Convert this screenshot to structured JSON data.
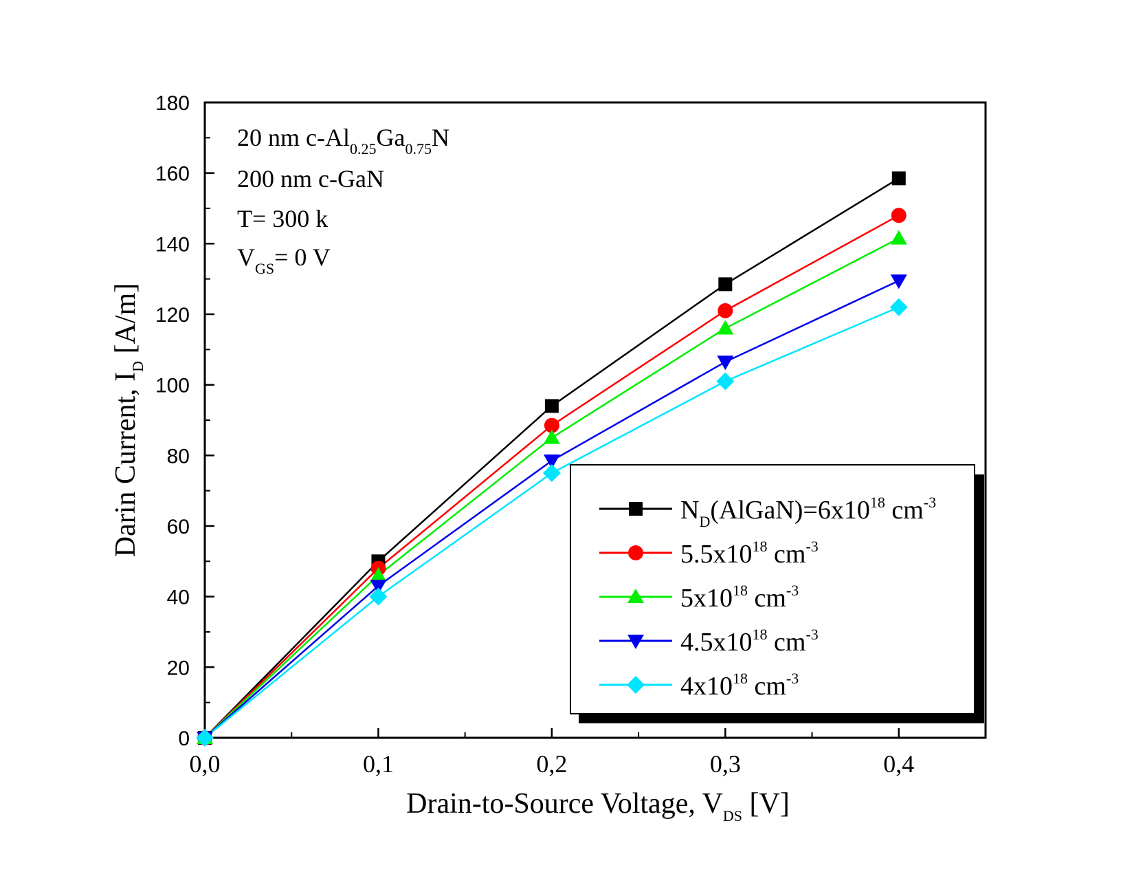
{
  "chart_data": {
    "type": "line",
    "title": "",
    "xlabel": {
      "main": "Drain-to-Source Voltage, V",
      "sub": "DS",
      "unit": " [V]"
    },
    "ylabel": {
      "main": "Darin Current, I",
      "sub": "D",
      "unit": " [A/m]"
    },
    "xlim": [
      0,
      0.45
    ],
    "ylim": [
      0,
      180
    ],
    "xticks": [
      0,
      0.1,
      0.2,
      0.3,
      0.4
    ],
    "xtick_labels": [
      "0,0",
      "0,1",
      "0,2",
      "0,3",
      "0,4"
    ],
    "yticks": [
      0,
      20,
      40,
      60,
      80,
      100,
      120,
      140,
      160,
      180
    ],
    "ytick_labels": [
      "0",
      "20",
      "40",
      "60",
      "80",
      "100",
      "120",
      "140",
      "160",
      "180"
    ],
    "x": [
      0,
      0.1,
      0.2,
      0.3,
      0.4
    ],
    "series": [
      {
        "name": "N_D(AlGaN)=6x10^18 cm^-3",
        "color": "#000000",
        "marker": "square",
        "values": [
          0,
          50,
          94,
          128.5,
          158.5
        ]
      },
      {
        "name": "5.5x10^18 cm^-3",
        "color": "#ff0000",
        "marker": "circle",
        "values": [
          0,
          48,
          88.5,
          121,
          148
        ]
      },
      {
        "name": "5x10^18 cm^-3",
        "color": "#00ee00",
        "marker": "triangle-up",
        "values": [
          0,
          46,
          85,
          116,
          141.5
        ]
      },
      {
        "name": "4.5x10^18 cm^-3",
        "color": "#0000ee",
        "marker": "triangle-down",
        "values": [
          0,
          43,
          78.5,
          106.5,
          129.5
        ]
      },
      {
        "name": "4x10^18 cm^-3",
        "color": "#00e5ff",
        "marker": "diamond",
        "values": [
          0,
          40,
          75,
          101,
          122
        ]
      }
    ],
    "legend_position": "bottom-right",
    "legend": [
      {
        "pre": "N",
        "sub": "D",
        "mid": "(AlGaN)=6x10",
        "sup1": "18",
        "unit": " cm",
        "sup2": "-3"
      },
      {
        "pre": "5.5x10",
        "sub": "",
        "mid": "",
        "sup1": "18",
        "unit": " cm",
        "sup2": "-3"
      },
      {
        "pre": "5x10",
        "sub": "",
        "mid": "",
        "sup1": "18",
        "unit": " cm",
        "sup2": "-3"
      },
      {
        "pre": "4.5x10",
        "sub": "",
        "mid": "",
        "sup1": "18",
        "unit": " cm",
        "sup2": "-3"
      },
      {
        "pre": "4x10",
        "sub": "",
        "mid": "",
        "sup1": "18",
        "unit": " cm",
        "sup2": "-3"
      }
    ],
    "annotations": {
      "line1": {
        "a": "20 nm c-Al",
        "s1": "0.25",
        "b": "Ga",
        "s2": "0.75",
        "c": "N"
      },
      "line2": "200 nm c-GaN",
      "line3": "T= 300 k",
      "line4": {
        "a": "V",
        "s": "GS",
        "b": "= 0 V"
      }
    }
  }
}
